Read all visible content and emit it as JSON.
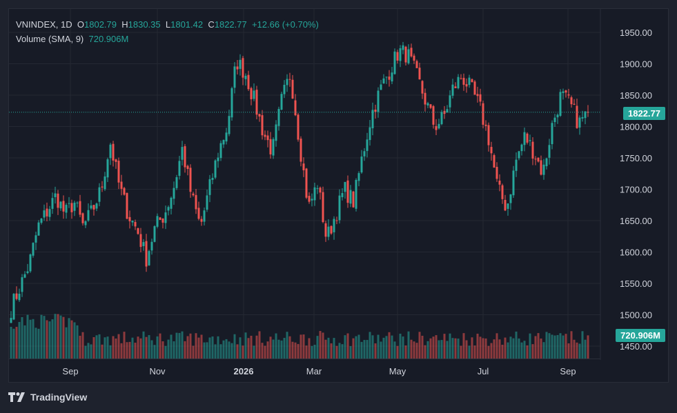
{
  "legend": {
    "symbol": "VNINDEX",
    "interval": "1D",
    "o_label": "O",
    "open": "1802.79",
    "h_label": "H",
    "high": "1830.35",
    "l_label": "L",
    "low": "1801.42",
    "c_label": "C",
    "close": "1822.77",
    "change": "+12.66 (+0.70%)",
    "volume_label": "Volume (SMA, 9)",
    "volume_value": "720.906M"
  },
  "price_tag": "1822.77",
  "volume_tag": "720.906M",
  "footer": {
    "brand": "TradingView"
  },
  "colors": {
    "up": "#26a69a",
    "down": "#ef5350",
    "bg": "#171b26",
    "grid": "#242833",
    "text": "#d1d4dc"
  },
  "chart_data": {
    "type": "candlestick",
    "y_ticks": [
      "1950.00",
      "1900.00",
      "1850.00",
      "1800.00",
      "1750.00",
      "1700.00",
      "1650.00",
      "1600.00",
      "1550.00",
      "1500.00",
      "1450.00"
    ],
    "x_ticks": [
      "Sep",
      "Nov",
      "2026",
      "Mar",
      "May",
      "Jul",
      "Sep"
    ],
    "ylim": [
      1432,
      1958
    ],
    "last_close": 1822.77,
    "volume_sma": "720.906M",
    "series": [
      {
        "name": "VNINDEX",
        "points": [
          {
            "x": "Aug",
            "y": 1510
          },
          {
            "x": "Aug",
            "y": 1545
          },
          {
            "x": "Aug",
            "y": 1580
          },
          {
            "x": "Aug",
            "y": 1640
          },
          {
            "x": "Sep",
            "y": 1665
          },
          {
            "x": "Sep",
            "y": 1690
          },
          {
            "x": "Sep",
            "y": 1660
          },
          {
            "x": "Sep",
            "y": 1680
          },
          {
            "x": "Sep",
            "y": 1640
          },
          {
            "x": "Oct",
            "y": 1665
          },
          {
            "x": "Oct",
            "y": 1700
          },
          {
            "x": "Oct",
            "y": 1775
          },
          {
            "x": "Oct",
            "y": 1705
          },
          {
            "x": "Oct",
            "y": 1660
          },
          {
            "x": "Nov",
            "y": 1635
          },
          {
            "x": "Nov",
            "y": 1590
          },
          {
            "x": "Nov",
            "y": 1640
          },
          {
            "x": "Nov",
            "y": 1660
          },
          {
            "x": "Nov",
            "y": 1700
          },
          {
            "x": "Dec",
            "y": 1765
          },
          {
            "x": "Dec",
            "y": 1690
          },
          {
            "x": "Dec",
            "y": 1640
          },
          {
            "x": "Dec",
            "y": 1700
          },
          {
            "x": "Dec",
            "y": 1760
          },
          {
            "x": "Dec",
            "y": 1800
          },
          {
            "x": "2026",
            "y": 1905
          },
          {
            "x": "2026",
            "y": 1885
          },
          {
            "x": "2026",
            "y": 1840
          },
          {
            "x": "Jan",
            "y": 1790
          },
          {
            "x": "Jan",
            "y": 1760
          },
          {
            "x": "Feb",
            "y": 1840
          },
          {
            "x": "Feb",
            "y": 1885
          },
          {
            "x": "Feb",
            "y": 1775
          },
          {
            "x": "Mar",
            "y": 1670
          },
          {
            "x": "Mar",
            "y": 1710
          },
          {
            "x": "Mar",
            "y": 1620
          },
          {
            "x": "Mar",
            "y": 1660
          },
          {
            "x": "Apr",
            "y": 1700
          },
          {
            "x": "Apr",
            "y": 1680
          },
          {
            "x": "Apr",
            "y": 1755
          },
          {
            "x": "Apr",
            "y": 1820
          },
          {
            "x": "Apr",
            "y": 1860
          },
          {
            "x": "Apr",
            "y": 1890
          },
          {
            "x": "May",
            "y": 1920
          },
          {
            "x": "May",
            "y": 1915
          },
          {
            "x": "May",
            "y": 1880
          },
          {
            "x": "May",
            "y": 1840
          },
          {
            "x": "Jun",
            "y": 1800
          },
          {
            "x": "Jun",
            "y": 1815
          },
          {
            "x": "Jun",
            "y": 1860
          },
          {
            "x": "Jun",
            "y": 1880
          },
          {
            "x": "Jun",
            "y": 1860
          },
          {
            "x": "Jul",
            "y": 1830
          },
          {
            "x": "Jul",
            "y": 1780
          },
          {
            "x": "Jul",
            "y": 1700
          },
          {
            "x": "Jul",
            "y": 1670
          },
          {
            "x": "Jul",
            "y": 1745
          },
          {
            "x": "Aug",
            "y": 1785
          },
          {
            "x": "Aug",
            "y": 1760
          },
          {
            "x": "Aug",
            "y": 1725
          },
          {
            "x": "Aug",
            "y": 1800
          },
          {
            "x": "Sep",
            "y": 1850
          },
          {
            "x": "Sep",
            "y": 1835
          },
          {
            "x": "Sep",
            "y": 1805
          },
          {
            "x": "Sep",
            "y": 1822.77
          }
        ]
      }
    ]
  }
}
